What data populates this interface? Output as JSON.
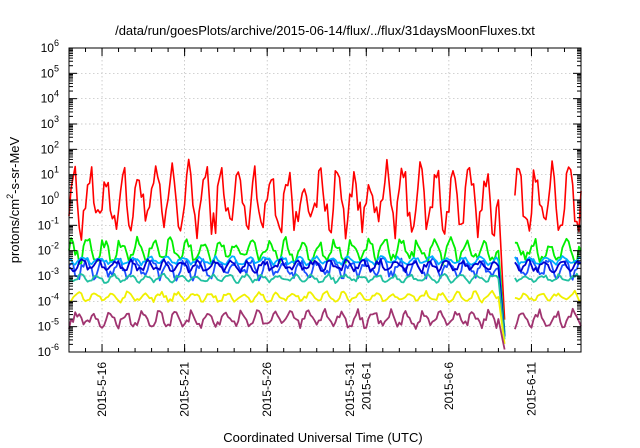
{
  "chart_data": {
    "type": "line",
    "title": "/data/run/goesPlots/archive/2015-06-14/flux/../flux/31daysMoonFluxes.txt",
    "xlabel": "Coordinated Universal Time (UTC)",
    "ylabel_parts": [
      "protons/cm",
      "2",
      "-s-sr-MeV"
    ],
    "y_scale": "log",
    "ylim_exponents": [
      -6,
      6
    ],
    "y_tick_labels": [
      {
        "base": "10",
        "exp": "-6"
      },
      {
        "base": "10",
        "exp": "-5"
      },
      {
        "base": "10",
        "exp": "-4"
      },
      {
        "base": "10",
        "exp": "-3"
      },
      {
        "base": "10",
        "exp": "-2"
      },
      {
        "base": "10",
        "exp": "-1"
      },
      {
        "base": "10",
        "exp": "0"
      },
      {
        "base": "10",
        "exp": "1"
      },
      {
        "base": "10",
        "exp": "2"
      },
      {
        "base": "10",
        "exp": "3"
      },
      {
        "base": "10",
        "exp": "4"
      },
      {
        "base": "10",
        "exp": "5"
      },
      {
        "base": "10",
        "exp": "6"
      }
    ],
    "xlim": [
      "2015-05-14",
      "2015-06-14"
    ],
    "x_ticks": [
      {
        "date": "2015-05-16",
        "label": "2015-5-16"
      },
      {
        "date": "2015-05-21",
        "label": "2015-5-21"
      },
      {
        "date": "2015-05-26",
        "label": "2015-5-26"
      },
      {
        "date": "2015-05-31",
        "label": "2015-5-31"
      },
      {
        "date": "2015-06-01",
        "label": "2015-6-1"
      },
      {
        "date": "2015-06-06",
        "label": "2015-6-6"
      },
      {
        "date": "2015-06-11",
        "label": "2015-6-11"
      }
    ],
    "grid": true,
    "data_gap": [
      "2015-06-09",
      "2015-06-10"
    ],
    "series": [
      {
        "color": "#ff0000",
        "typical_value": 1.0,
        "daily_amplitude_decades": 1.0
      },
      {
        "color": "#00ee00",
        "typical_value": 0.01,
        "daily_amplitude_decades": 0.35
      },
      {
        "color": "#1b4fff",
        "typical_value": 0.002,
        "daily_amplitude_decades": 0.3
      },
      {
        "color": "#00b0ff",
        "typical_value": 0.004,
        "daily_amplitude_decades": 0.12
      },
      {
        "color": "#0000d0",
        "typical_value": 0.0025,
        "daily_amplitude_decades": 0.18
      },
      {
        "color": "#20c0a0",
        "typical_value": 0.0008,
        "daily_amplitude_decades": 0.12
      },
      {
        "color": "#f0f000",
        "typical_value": 0.00015,
        "daily_amplitude_decades": 0.15
      },
      {
        "color": "#a03470",
        "typical_value": 2e-05,
        "daily_amplitude_decades": 0.25
      }
    ]
  }
}
